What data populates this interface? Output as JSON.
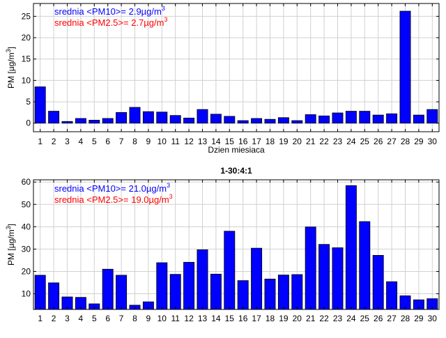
{
  "colors": {
    "pm10": "#0000ff",
    "pm25": "#ff0000",
    "grid": "#d0d0d0",
    "edge": "#000000"
  },
  "chart_data": [
    {
      "type": "bar",
      "title": "",
      "xlabel": "Dzien miesiaca",
      "ylabel": "PM [µg/m³]",
      "ylabel_main": "PM [µg/m",
      "ylabel_sup": "3",
      "ylabel_end": "]",
      "ylim": [
        -2,
        28
      ],
      "yticks": [
        0,
        5,
        10,
        15,
        20,
        25
      ],
      "categories": [
        "1",
        "2",
        "3",
        "4",
        "5",
        "6",
        "7",
        "8",
        "9",
        "10",
        "11",
        "12",
        "13",
        "14",
        "15",
        "16",
        "17",
        "18",
        "19",
        "20",
        "21",
        "22",
        "23",
        "24",
        "25",
        "26",
        "27",
        "28",
        "29",
        "30"
      ],
      "series": [
        {
          "name": "PM10",
          "values": [
            8.5,
            2.8,
            0.4,
            1.1,
            0.7,
            1.1,
            2.5,
            3.7,
            2.7,
            2.6,
            1.8,
            1.2,
            3.2,
            2.1,
            1.6,
            0.6,
            1.1,
            0.9,
            1.3,
            0.6,
            2.0,
            1.7,
            2.4,
            2.8,
            2.8,
            1.9,
            2.2,
            26.2,
            1.9,
            3.2
          ]
        }
      ],
      "legend": [
        {
          "main": "srednia <PM10>= 2.9µg/m",
          "sup": "3",
          "color_key": "pm10"
        },
        {
          "main": "srednia <PM2.5>= 2.7µg/m",
          "sup": "3",
          "color_key": "pm25"
        }
      ]
    },
    {
      "type": "bar",
      "title": "1-30:4:1",
      "xlabel": "",
      "ylabel": "PM [µg/m³]",
      "ylabel_main": "PM [µg/m",
      "ylabel_sup": "3",
      "ylabel_end": "]",
      "ylim": [
        3,
        61
      ],
      "yticks": [
        10,
        20,
        30,
        40,
        50,
        60
      ],
      "categories": [
        "1",
        "2",
        "3",
        "4",
        "5",
        "6",
        "7",
        "8",
        "9",
        "10",
        "11",
        "12",
        "13",
        "14",
        "15",
        "16",
        "17",
        "18",
        "19",
        "20",
        "21",
        "22",
        "23",
        "24",
        "25",
        "26",
        "27",
        "28",
        "29",
        "30"
      ],
      "series": [
        {
          "name": "PM10",
          "values": [
            18.3,
            14.9,
            8.6,
            8.4,
            5.5,
            21.0,
            18.3,
            4.9,
            6.4,
            23.9,
            18.7,
            24.1,
            29.7,
            18.8,
            38.0,
            15.9,
            30.4,
            16.6,
            18.4,
            18.6,
            39.9,
            32.1,
            30.6,
            58.4,
            42.3,
            27.2,
            15.4,
            9.1,
            7.3,
            7.8
          ]
        }
      ],
      "legend": [
        {
          "main": "srednia <PM10>= 21.0µg/m",
          "sup": "3",
          "color_key": "pm10"
        },
        {
          "main": "srednia <PM2.5>= 19.0µg/m",
          "sup": "3",
          "color_key": "pm25"
        }
      ]
    }
  ]
}
